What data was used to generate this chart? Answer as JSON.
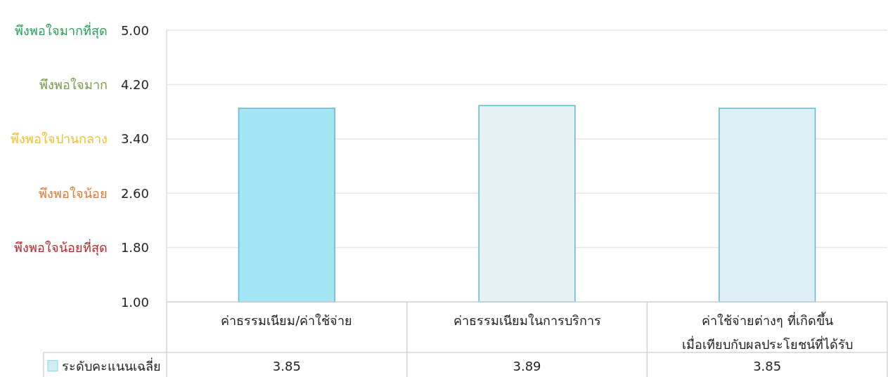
{
  "chart_data": {
    "type": "bar",
    "categories": [
      "ค่าธรรมเนียม/ค่าใช้จ่าย",
      "ค่าธรรมเนียมในการบริการ",
      "ค่าใช้จ่ายต่างๆ ที่เกิดขึ้น\nเมื่อเทียบกับผลประโยชน์ที่ได้รับ"
    ],
    "series": [
      {
        "name": "ระดับคะแนนเฉลี่ย",
        "color": "#cdeef7",
        "colors": [
          "#a3e4f5",
          "#e6f1f5",
          "#dcf0f6"
        ],
        "values": [
          3.85,
          3.89,
          3.85
        ]
      }
    ],
    "ylim": [
      1,
      5
    ],
    "yticks": [
      {
        "value": 1,
        "label": "1.00"
      },
      {
        "value": 1.8,
        "label": "1.80"
      },
      {
        "value": 2.6,
        "label": "2.60"
      },
      {
        "value": 3.4,
        "label": "3.40"
      },
      {
        "value": 4.2,
        "label": "4.20"
      },
      {
        "value": 5,
        "label": "5.00"
      }
    ],
    "annotations": [
      "พึงพอใจมากที่สุด",
      "พึงพอใจมาก",
      "พึงพอใจปานกลาง",
      "พึงพอใจน้อย",
      "พึงพอใจน้อยที่สุด"
    ],
    "grid": "y",
    "data_labels": true,
    "legend": "bottom"
  }
}
